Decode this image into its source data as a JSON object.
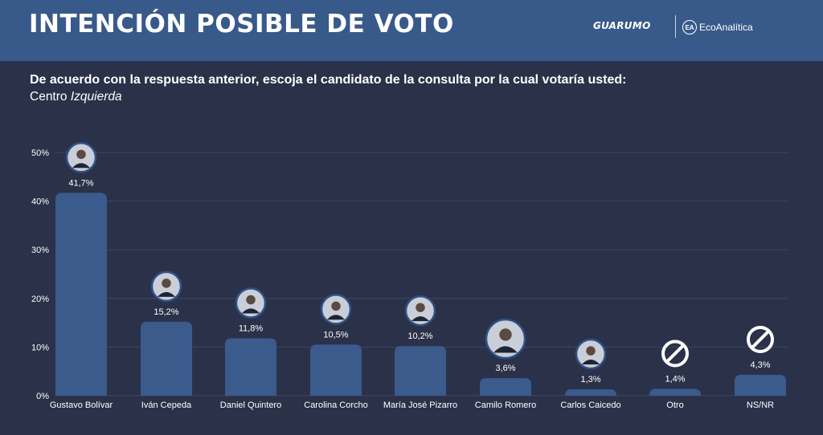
{
  "header": {
    "title": "INTENCIÓN POSIBLE DE VOTO",
    "logo_guarumo": "GUARUMO",
    "logo_eco_mark": "EA",
    "logo_eco": "EcoAnalítica"
  },
  "question": "De acuerdo con la respuesta anterior, escoja el candidato de la consulta por la cual votaría usted:",
  "subtitle": {
    "main": "Centro",
    "emphasis": "Izquierda"
  },
  "colors": {
    "background": "#2b3149",
    "header": "#385a8a",
    "bar": "#3a5b8c",
    "text": "#ffffff"
  },
  "chart_data": {
    "type": "bar",
    "categories": [
      "Gustavo Bolívar",
      "Iván Cepeda",
      "Daniel Quintero",
      "Carolina Corcho",
      "María José Pizarro",
      "Camilo Romero",
      "Carlos Caicedo",
      "Otro",
      "NS/NR"
    ],
    "values": [
      41.7,
      15.2,
      11.8,
      10.5,
      10.2,
      3.6,
      1.3,
      1.4,
      4.3
    ],
    "value_labels": [
      "41,7%",
      "15,2%",
      "11,8%",
      "10,5%",
      "10,2%",
      "3,6%",
      "1,3%",
      "1,4%",
      "4,3%"
    ],
    "icons": [
      "candidate-photo-icon",
      "candidate-photo-icon",
      "candidate-photo-icon",
      "candidate-photo-icon",
      "candidate-photo-icon",
      "candidate-photo-icon",
      "candidate-photo-icon",
      "prohibited-icon",
      "prohibited-icon"
    ],
    "yticks": [
      "0%",
      "10%",
      "20%",
      "30%",
      "40%",
      "50%"
    ],
    "ylim": [
      0,
      50
    ],
    "grid": true,
    "legend": false
  }
}
